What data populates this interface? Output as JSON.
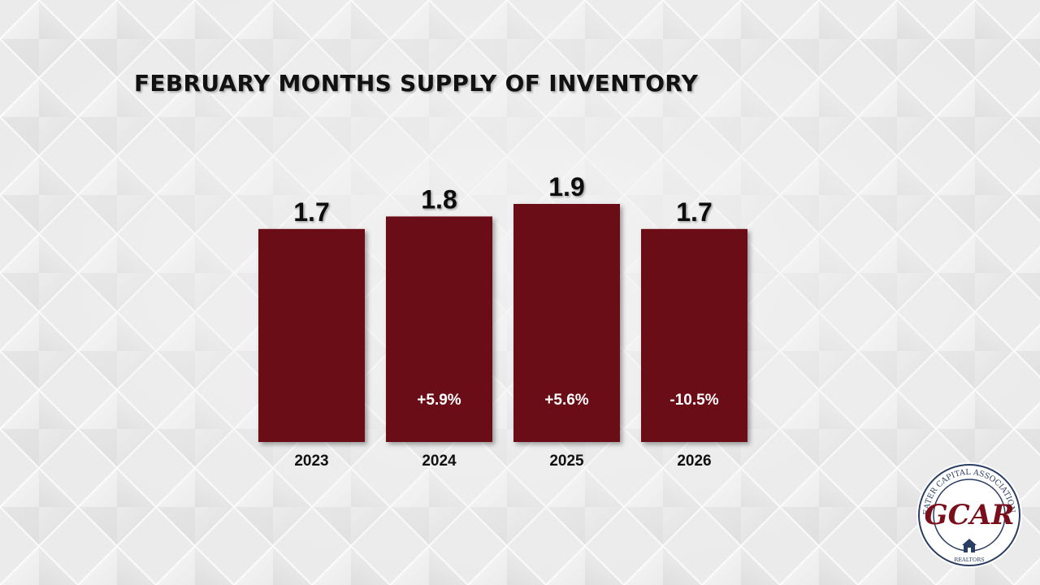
{
  "chart_data": {
    "type": "bar",
    "title": "FEBRUARY MONTHS SUPPLY OF INVENTORY",
    "categories": [
      "2023",
      "2024",
      "2025",
      "2026"
    ],
    "values": [
      1.7,
      1.8,
      1.9,
      1.7
    ],
    "value_labels": [
      "1.7",
      "1.8",
      "1.9",
      "1.7"
    ],
    "change_labels": [
      "",
      "+5.9%",
      "+5.6%",
      "-10.5%"
    ],
    "ylim": [
      0,
      1.9
    ],
    "bar_color": "#6b0712",
    "grid": false,
    "legend": "none"
  },
  "logo": {
    "ring_text": "GREATER CAPITAL ASSOCIATION OF",
    "main_text": "GCAR",
    "bottom_text": "REALTORS",
    "colors": {
      "ring": "#2a3d63",
      "text": "#7a0f1c"
    }
  }
}
